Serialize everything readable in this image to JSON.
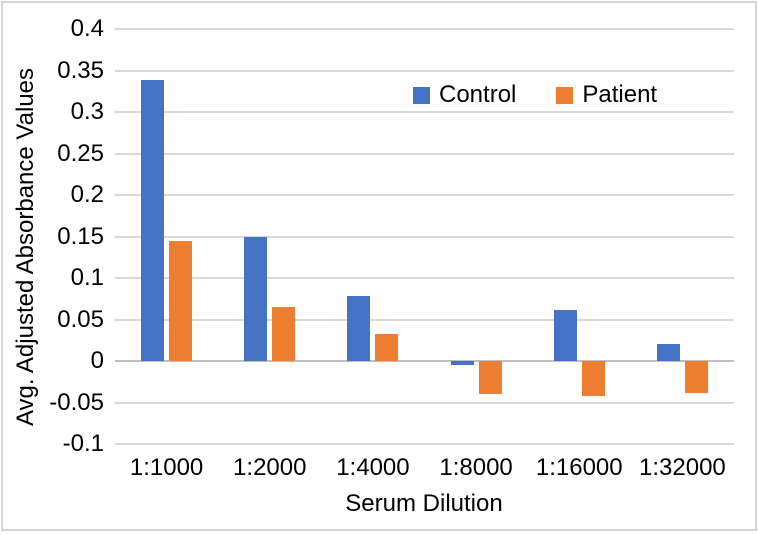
{
  "chart_data": {
    "type": "bar",
    "title": "",
    "categories": [
      "1:1000",
      "1:2000",
      "1:4000",
      "1:8000",
      "1:16000",
      "1:32000"
    ],
    "series": [
      {
        "name": "Control",
        "color": "#4472C4",
        "values": [
          0.338,
          0.15,
          0.078,
          -0.005,
          0.062,
          0.021
        ]
      },
      {
        "name": "Patient",
        "color": "#ED7D31",
        "values": [
          0.145,
          0.065,
          0.032,
          -0.04,
          -0.042,
          -0.038
        ]
      }
    ],
    "xlabel": "Serum Dilution",
    "ylabel": "Avg. Adjusted Absorbance Values",
    "ylim": [
      -0.1,
      0.4
    ],
    "ytick_step": 0.05,
    "yticks": [
      "0.4",
      "0.35",
      "0.3",
      "0.25",
      "0.2",
      "0.15",
      "0.1",
      "0.05",
      "0",
      "-0.05",
      "-0.1"
    ],
    "grid": true,
    "legend_position": "inside-top"
  },
  "colors": {
    "gridline": "#D9D9D9",
    "zero_axis_line": "#BFBFBF",
    "text": "#000000",
    "frame_border": "#D4D4D4",
    "background": "#FFFFFF"
  }
}
